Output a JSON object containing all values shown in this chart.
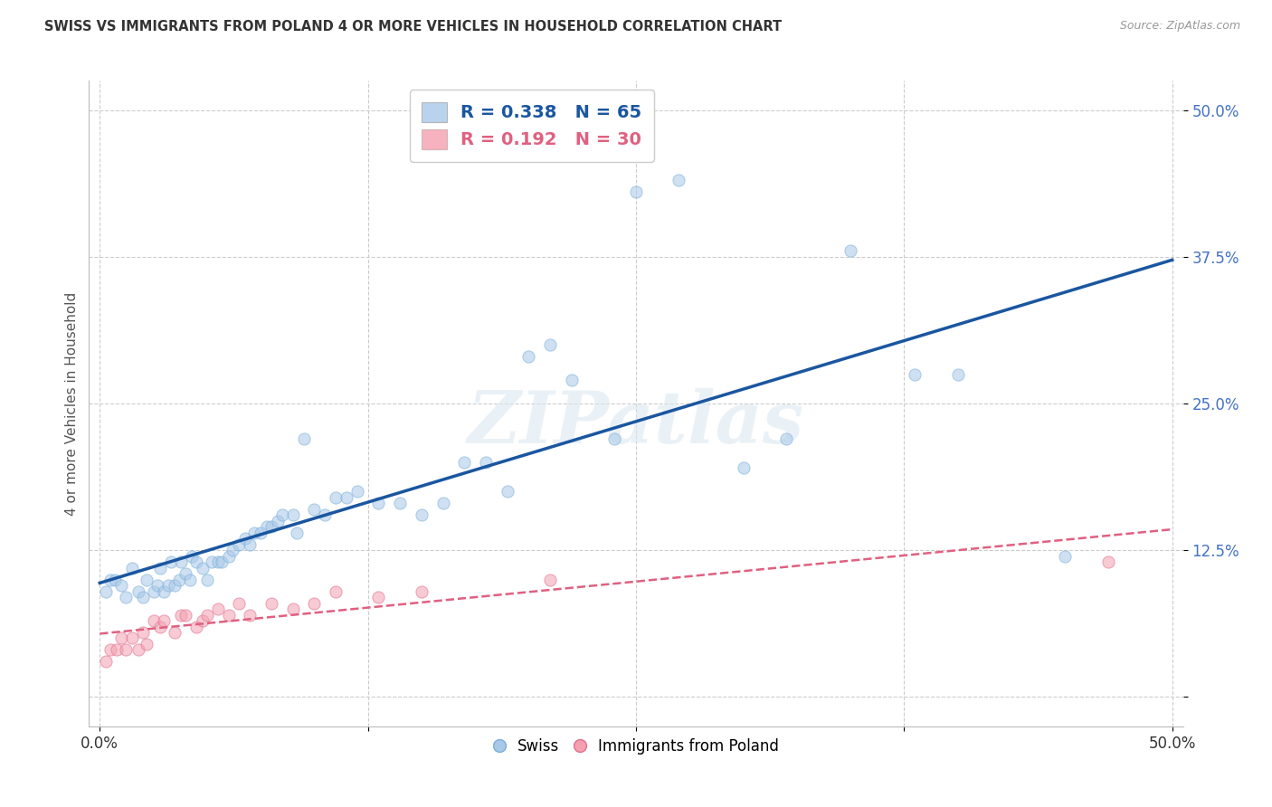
{
  "title": "SWISS VS IMMIGRANTS FROM POLAND 4 OR MORE VEHICLES IN HOUSEHOLD CORRELATION CHART",
  "source": "Source: ZipAtlas.com",
  "ylabel": "4 or more Vehicles in Household",
  "xlim": [
    0.0,
    0.5
  ],
  "ylim": [
    0.0,
    0.5
  ],
  "yticks": [
    0.0,
    0.125,
    0.25,
    0.375,
    0.5
  ],
  "ytick_labels": [
    "",
    "12.5%",
    "25.0%",
    "37.5%",
    "50.0%"
  ],
  "xticks": [
    0.0,
    0.125,
    0.25,
    0.375,
    0.5
  ],
  "xtick_labels": [
    "0.0%",
    "",
    "",
    "",
    "50.0%"
  ],
  "swiss_R": 0.338,
  "swiss_N": 65,
  "poland_R": 0.192,
  "poland_N": 30,
  "swiss_color": "#a8c8e8",
  "poland_color": "#f4a0b0",
  "swiss_line_color": "#1a56a0",
  "poland_line_color": "#e06080",
  "watermark": "ZIPatlas",
  "swiss_x": [
    0.003,
    0.005,
    0.007,
    0.01,
    0.012,
    0.015,
    0.018,
    0.02,
    0.022,
    0.025,
    0.027,
    0.028,
    0.03,
    0.032,
    0.033,
    0.035,
    0.037,
    0.038,
    0.04,
    0.042,
    0.043,
    0.045,
    0.048,
    0.05,
    0.052,
    0.055,
    0.057,
    0.06,
    0.062,
    0.065,
    0.068,
    0.07,
    0.072,
    0.075,
    0.078,
    0.08,
    0.083,
    0.085,
    0.09,
    0.092,
    0.095,
    0.1,
    0.105,
    0.11,
    0.115,
    0.12,
    0.13,
    0.14,
    0.15,
    0.16,
    0.17,
    0.18,
    0.19,
    0.2,
    0.21,
    0.22,
    0.24,
    0.25,
    0.27,
    0.3,
    0.32,
    0.35,
    0.38,
    0.4,
    0.45
  ],
  "swiss_y": [
    0.09,
    0.1,
    0.1,
    0.095,
    0.085,
    0.11,
    0.09,
    0.085,
    0.1,
    0.09,
    0.095,
    0.11,
    0.09,
    0.095,
    0.115,
    0.095,
    0.1,
    0.115,
    0.105,
    0.1,
    0.12,
    0.115,
    0.11,
    0.1,
    0.115,
    0.115,
    0.115,
    0.12,
    0.125,
    0.13,
    0.135,
    0.13,
    0.14,
    0.14,
    0.145,
    0.145,
    0.15,
    0.155,
    0.155,
    0.14,
    0.22,
    0.16,
    0.155,
    0.17,
    0.17,
    0.175,
    0.165,
    0.165,
    0.155,
    0.165,
    0.2,
    0.2,
    0.175,
    0.29,
    0.3,
    0.27,
    0.22,
    0.43,
    0.44,
    0.195,
    0.22,
    0.38,
    0.275,
    0.275,
    0.12
  ],
  "poland_x": [
    0.003,
    0.005,
    0.008,
    0.01,
    0.012,
    0.015,
    0.018,
    0.02,
    0.022,
    0.025,
    0.028,
    0.03,
    0.035,
    0.038,
    0.04,
    0.045,
    0.048,
    0.05,
    0.055,
    0.06,
    0.065,
    0.07,
    0.08,
    0.09,
    0.1,
    0.11,
    0.13,
    0.15,
    0.21,
    0.47
  ],
  "poland_y": [
    0.03,
    0.04,
    0.04,
    0.05,
    0.04,
    0.05,
    0.04,
    0.055,
    0.045,
    0.065,
    0.06,
    0.065,
    0.055,
    0.07,
    0.07,
    0.06,
    0.065,
    0.07,
    0.075,
    0.07,
    0.08,
    0.07,
    0.08,
    0.075,
    0.08,
    0.09,
    0.085,
    0.09,
    0.1,
    0.115
  ]
}
